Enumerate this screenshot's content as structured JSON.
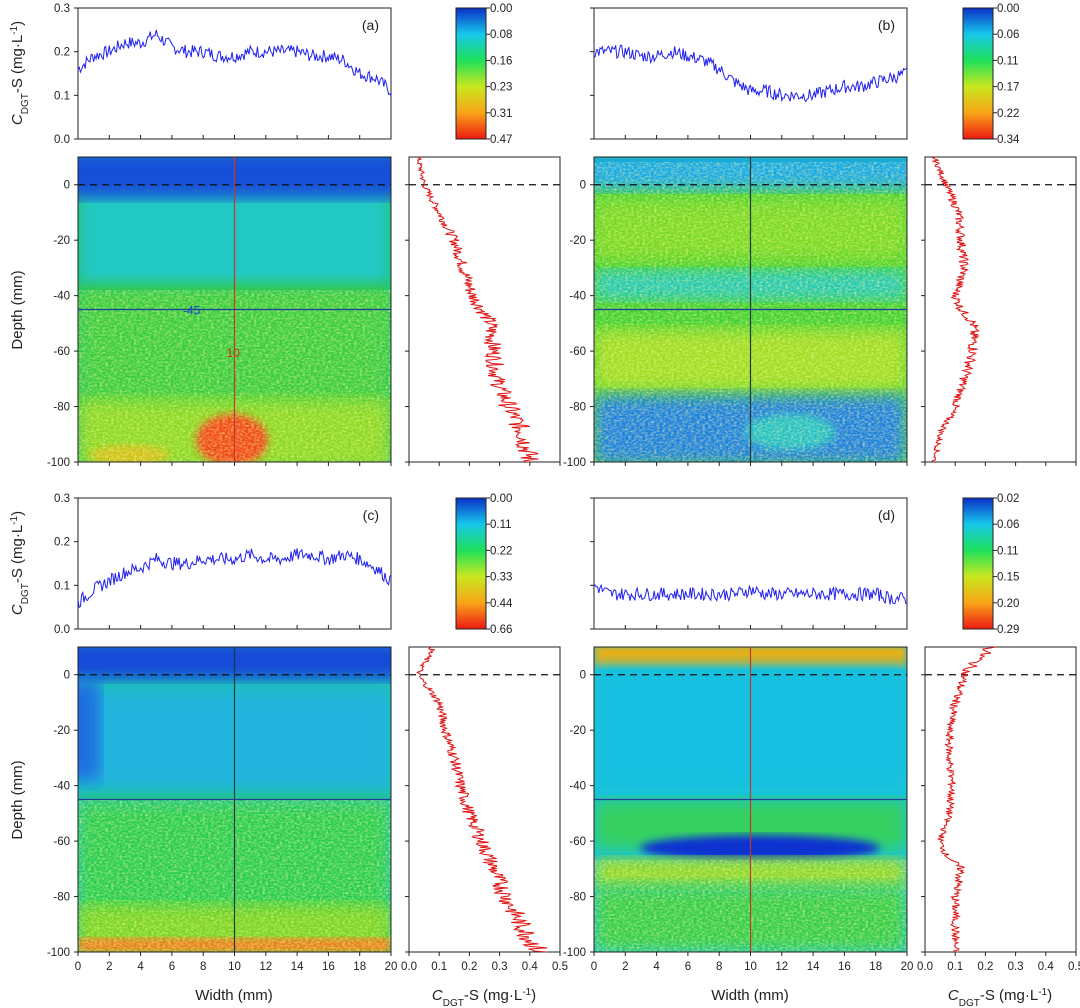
{
  "figure": {
    "label_ylabel_top": "C",
    "label_ylabel_top_sub": "DGT",
    "label_ylabel_top_rest": "-S (mg·L",
    "label_ylabel_top_sup": "-1",
    "label_ylabel_top_end": ")",
    "label_depth": "Depth (mm)",
    "label_width": "Width (mm)",
    "label_conc_c": "C",
    "label_conc_sub": "DGT",
    "label_conc_rest": "-S (mg·L",
    "label_conc_sup": "-1",
    "label_conc_end": ")"
  },
  "chart_data": [
    {
      "id": "a",
      "panel_label": "(a)",
      "type": "heatmap",
      "top_profile": {
        "xlabel": "Width (mm)",
        "ylim": [
          0,
          0.3
        ],
        "yticks": [
          "0.0",
          "0.1",
          "0.2",
          "0.3"
        ],
        "x": [
          0,
          1,
          2,
          3,
          4,
          5,
          6,
          7,
          8,
          9,
          10,
          11,
          12,
          13,
          14,
          15,
          16,
          17,
          18,
          19,
          20
        ],
        "y": [
          0.16,
          0.19,
          0.2,
          0.22,
          0.22,
          0.24,
          0.21,
          0.2,
          0.2,
          0.19,
          0.19,
          0.2,
          0.2,
          0.2,
          0.2,
          0.19,
          0.19,
          0.18,
          0.15,
          0.14,
          0.11
        ]
      },
      "colorbar_ticks": [
        "0.00",
        "0.08",
        "0.16",
        "0.23",
        "0.31",
        "0.47"
      ],
      "depth_profile": {
        "xlim": [
          0,
          0.5
        ],
        "ylim": [
          -100,
          10
        ],
        "depth": [
          10,
          0,
          -10,
          -20,
          -30,
          -40,
          -45,
          -50,
          -60,
          -70,
          -80,
          -90,
          -100
        ],
        "conc": [
          0.03,
          0.05,
          0.1,
          0.15,
          0.18,
          0.21,
          0.24,
          0.27,
          0.28,
          0.29,
          0.33,
          0.38,
          0.4
        ]
      },
      "crosshair": {
        "depth_value": "-45",
        "width_value": "10"
      }
    },
    {
      "id": "b",
      "panel_label": "(b)",
      "type": "heatmap",
      "top_profile": {
        "ylim": [
          0,
          0.3
        ],
        "x": [
          0,
          1,
          2,
          3,
          4,
          5,
          6,
          7,
          8,
          9,
          10,
          11,
          12,
          13,
          14,
          15,
          16,
          17,
          18,
          19,
          20
        ],
        "y": [
          0.2,
          0.2,
          0.2,
          0.19,
          0.19,
          0.2,
          0.19,
          0.18,
          0.16,
          0.13,
          0.11,
          0.11,
          0.1,
          0.1,
          0.1,
          0.11,
          0.12,
          0.12,
          0.13,
          0.14,
          0.15
        ]
      },
      "colorbar_ticks": [
        "0.00",
        "0.06",
        "0.11",
        "0.17",
        "0.22",
        "0.34"
      ],
      "depth_profile": {
        "xlim": [
          0,
          0.5
        ],
        "ylim": [
          -100,
          10
        ],
        "depth": [
          10,
          0,
          -10,
          -20,
          -30,
          -40,
          -45,
          -50,
          -60,
          -70,
          -80,
          -90,
          -100
        ],
        "conc": [
          0.03,
          0.07,
          0.11,
          0.12,
          0.13,
          0.1,
          0.12,
          0.16,
          0.16,
          0.13,
          0.1,
          0.05,
          0.03
        ]
      }
    },
    {
      "id": "c",
      "panel_label": "(c)",
      "type": "heatmap",
      "top_profile": {
        "ylim": [
          0,
          0.3
        ],
        "yticks": [
          "0.0",
          "0.1",
          "0.2",
          "0.3"
        ],
        "x": [
          0,
          1,
          2,
          3,
          4,
          5,
          6,
          7,
          8,
          9,
          10,
          11,
          12,
          13,
          14,
          15,
          16,
          17,
          18,
          19,
          20
        ],
        "y": [
          0.06,
          0.09,
          0.11,
          0.13,
          0.14,
          0.16,
          0.15,
          0.15,
          0.16,
          0.16,
          0.16,
          0.17,
          0.16,
          0.16,
          0.17,
          0.17,
          0.16,
          0.17,
          0.16,
          0.14,
          0.11
        ]
      },
      "colorbar_ticks": [
        "0.00",
        "0.11",
        "0.22",
        "0.33",
        "0.44",
        "0.66"
      ],
      "depth_profile": {
        "xlim": [
          0,
          0.5
        ],
        "ylim": [
          -100,
          10
        ],
        "depth": [
          10,
          0,
          -10,
          -20,
          -30,
          -40,
          -50,
          -60,
          -70,
          -80,
          -90,
          -100
        ],
        "conc": [
          0.08,
          0.03,
          0.1,
          0.12,
          0.15,
          0.17,
          0.2,
          0.24,
          0.28,
          0.32,
          0.37,
          0.43
        ]
      }
    },
    {
      "id": "d",
      "panel_label": "(d)",
      "type": "heatmap",
      "top_profile": {
        "ylim": [
          0,
          0.3
        ],
        "x": [
          0,
          1,
          2,
          3,
          4,
          5,
          6,
          7,
          8,
          9,
          10,
          11,
          12,
          13,
          14,
          15,
          16,
          17,
          18,
          19,
          20
        ],
        "y": [
          0.1,
          0.08,
          0.08,
          0.08,
          0.08,
          0.08,
          0.08,
          0.08,
          0.08,
          0.08,
          0.09,
          0.08,
          0.08,
          0.08,
          0.08,
          0.08,
          0.08,
          0.08,
          0.08,
          0.07,
          0.07
        ]
      },
      "colorbar_ticks": [
        "0.02",
        "0.06",
        "0.11",
        "0.15",
        "0.20",
        "0.29"
      ],
      "depth_profile": {
        "xlim": [
          0,
          0.5
        ],
        "ylim": [
          -100,
          10
        ],
        "depth": [
          10,
          5,
          0,
          -10,
          -20,
          -30,
          -40,
          -50,
          -60,
          -65,
          -70,
          -80,
          -90,
          -100
        ],
        "conc": [
          0.22,
          0.17,
          0.13,
          0.1,
          0.08,
          0.08,
          0.09,
          0.08,
          0.05,
          0.07,
          0.12,
          0.1,
          0.1,
          0.1
        ]
      }
    }
  ],
  "axes": {
    "depth_ticks": [
      "0",
      "-20",
      "-40",
      "-60",
      "-80",
      "-100"
    ],
    "width_ticks": [
      "0",
      "2",
      "4",
      "6",
      "8",
      "10",
      "12",
      "14",
      "16",
      "18",
      "20"
    ],
    "conc_ticks": [
      "0.0",
      "0.1",
      "0.2",
      "0.3",
      "0.4",
      "0.5"
    ],
    "top_yticks": [
      "0.0",
      "0.1",
      "0.2",
      "0.3"
    ]
  },
  "colors": {
    "profile_blue": "#2020ee",
    "profile_red": "#e01010",
    "crosshair_blue": "#1f3f9f",
    "crosshair_red": "#c0392b",
    "crosshair_dark": "#1e3b3b"
  }
}
